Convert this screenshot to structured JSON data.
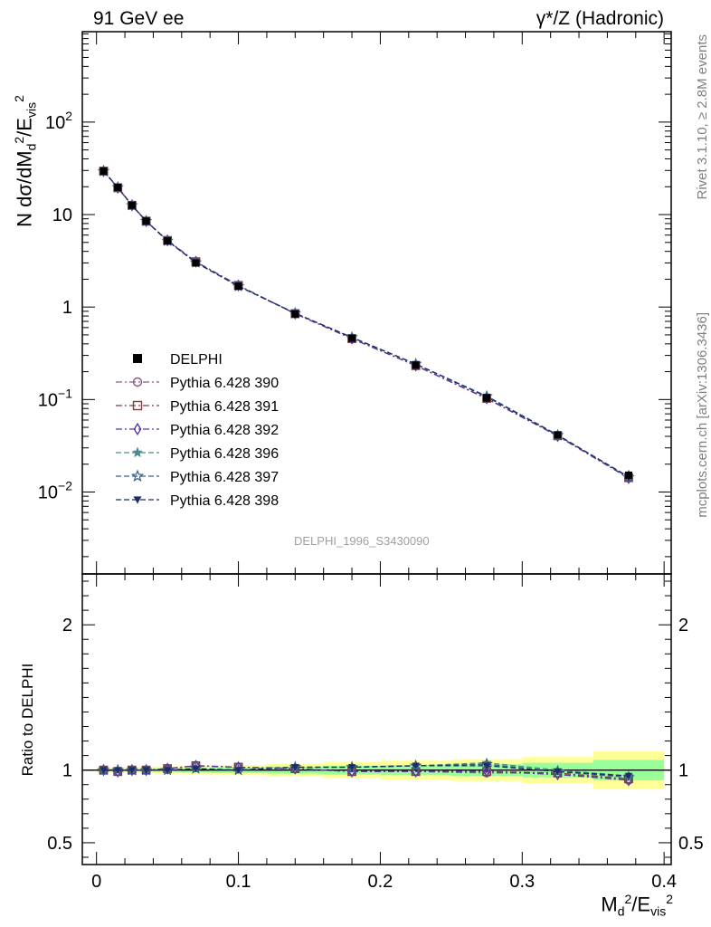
{
  "header": {
    "left": "91 GeV ee",
    "right": "γ*/Z (Hadronic)"
  },
  "side_labels": {
    "rivet": "Rivet 3.1.10, ≥ 2.8M events",
    "mcplots": "mcplots.cern.ch [arXiv:1306.3436]"
  },
  "watermark": "DELPHI_1996_S3430090",
  "chart_data": {
    "type": "scatter",
    "title": "",
    "xlabel": "M_d^2/E_vis^2",
    "ylabel_main": "N dσ/dM_d^2/E_vis^2",
    "ylabel_ratio": "Ratio to DELPHI",
    "xlim": [
      -0.01,
      0.405
    ],
    "ylim_main": [
      0.0013,
      950
    ],
    "yscale_main": "log",
    "ylim_ratio": [
      0.35,
      2.35
    ],
    "x_ticks": [
      0,
      0.1,
      0.2,
      0.3,
      0.4
    ],
    "x_tick_labels": [
      "0",
      "0.1",
      "0.2",
      "0.3",
      "0.4"
    ],
    "y_ticks_main": [
      0.01,
      0.1,
      1,
      10,
      100
    ],
    "y_tick_labels_main": [
      "10^-2",
      "10^-1",
      "1",
      "10",
      "10^2"
    ],
    "y_ticks_ratio": [
      0.5,
      1,
      2
    ],
    "y_tick_labels_ratio": [
      "0.5",
      "1",
      "2"
    ],
    "legend_position": "lower-left",
    "x_edges": [
      0,
      0.01,
      0.02,
      0.03,
      0.04,
      0.06,
      0.08,
      0.12,
      0.16,
      0.2,
      0.25,
      0.3,
      0.35,
      0.4
    ],
    "x": [
      0.005,
      0.015,
      0.025,
      0.035,
      0.05,
      0.07,
      0.1,
      0.14,
      0.18,
      0.225,
      0.275,
      0.325,
      0.375
    ],
    "data": {
      "name": "DELPHI",
      "values": [
        29.5,
        19.7,
        12.6,
        8.5,
        5.2,
        3.0,
        1.68,
        0.84,
        0.46,
        0.235,
        0.104,
        0.0415,
        0.0152
      ]
    },
    "ratio_band_inner": [
      0.01,
      0.01,
      0.01,
      0.01,
      0.012,
      0.015,
      0.02,
      0.025,
      0.03,
      0.035,
      0.04,
      0.05,
      0.07
    ],
    "ratio_band_outer": [
      0.02,
      0.02,
      0.02,
      0.02,
      0.025,
      0.03,
      0.035,
      0.045,
      0.055,
      0.065,
      0.075,
      0.09,
      0.13
    ],
    "series": [
      {
        "name": "Pythia 6.428 390",
        "color": "#8a5a86",
        "marker": "circle-open",
        "dash": "dashdot",
        "ratio": [
          1.0,
          0.99,
          1.0,
          1.0,
          1.01,
          1.03,
          1.02,
          1.01,
          0.99,
          0.99,
          0.98,
          0.98,
          0.93
        ]
      },
      {
        "name": "Pythia 6.428 391",
        "color": "#7a4040",
        "marker": "square-open",
        "dash": "dashdot",
        "ratio": [
          1.0,
          0.99,
          1.0,
          1.0,
          1.01,
          1.03,
          1.02,
          1.01,
          0.99,
          0.99,
          0.99,
          0.98,
          0.94
        ]
      },
      {
        "name": "Pythia 6.428 392",
        "color": "#5b3aa0",
        "marker": "diamond-open",
        "dash": "dashdot",
        "ratio": [
          1.0,
          0.99,
          1.0,
          1.0,
          1.01,
          1.03,
          1.02,
          1.01,
          0.99,
          0.99,
          0.99,
          0.97,
          0.93
        ]
      },
      {
        "name": "Pythia 6.428 396",
        "color": "#4e8b8f",
        "marker": "star-filled",
        "dash": "dashed",
        "ratio": [
          1.0,
          1.0,
          1.0,
          1.0,
          1.0,
          1.01,
          1.0,
          1.02,
          1.02,
          1.03,
          1.05,
          1.0,
          0.96
        ]
      },
      {
        "name": "Pythia 6.428 397",
        "color": "#3a5f88",
        "marker": "star-open",
        "dash": "dashed",
        "ratio": [
          1.0,
          1.0,
          1.0,
          1.0,
          1.0,
          1.01,
          1.0,
          1.02,
          1.02,
          1.03,
          1.04,
          0.99,
          0.95
        ]
      },
      {
        "name": "Pythia 6.428 398",
        "color": "#1d2d66",
        "marker": "triangle-down-filled",
        "dash": "dashed",
        "ratio": [
          1.0,
          1.0,
          1.0,
          1.0,
          1.0,
          1.01,
          1.0,
          1.02,
          1.02,
          1.03,
          1.03,
          0.99,
          0.96
        ]
      }
    ],
    "colors": {
      "band_inner": "#99ff99",
      "band_outer": "#ffff99",
      "data": "#000000"
    }
  }
}
